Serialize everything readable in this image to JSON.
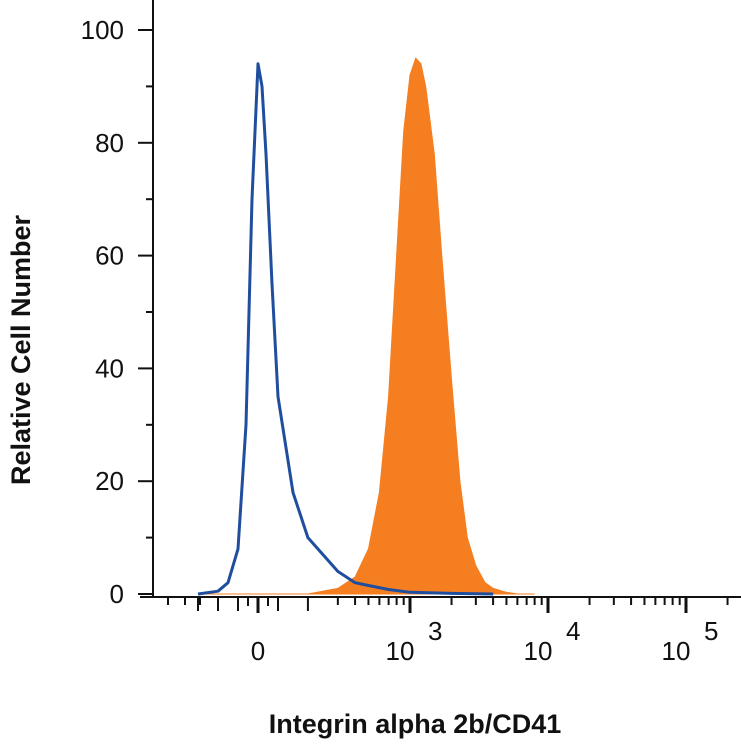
{
  "chart_data": {
    "type": "area",
    "title": "",
    "xlabel": "Integrin alpha 2b/CD41",
    "ylabel": "Relative Cell Number",
    "x_scale": "biexponential",
    "ylim": [
      0,
      100
    ],
    "grid": false,
    "legend": "none",
    "y_ticks": [
      {
        "value": 0,
        "label": "0"
      },
      {
        "value": 20,
        "label": "20"
      },
      {
        "value": 40,
        "label": "40"
      },
      {
        "value": 60,
        "label": "60"
      },
      {
        "value": 80,
        "label": "80"
      },
      {
        "value": 100,
        "label": "100"
      }
    ],
    "x_ticks": [
      {
        "value": 0,
        "label": "0",
        "exp": ""
      },
      {
        "value": 1000,
        "label": "10",
        "exp": "3"
      },
      {
        "value": 10000,
        "label": "10",
        "exp": "4"
      },
      {
        "value": 100000,
        "label": "10",
        "exp": "5"
      }
    ],
    "series": [
      {
        "style": "outline",
        "color": "#1f4e9e",
        "x": [
          -300,
          -200,
          -150,
          -100,
          -60,
          -30,
          0,
          20,
          40,
          70,
          100,
          150,
          200,
          300,
          400,
          500,
          700,
          1000,
          2000,
          4000
        ],
        "y": [
          0,
          0.5,
          2,
          8,
          30,
          70,
          94,
          90,
          78,
          55,
          35,
          18,
          10,
          4,
          2,
          1.5,
          0.8,
          0.3,
          0.1,
          0
        ]
      },
      {
        "style": "filled",
        "color": "#f57e20",
        "x": [
          -300,
          200,
          300,
          400,
          500,
          600,
          700,
          800,
          900,
          1000,
          1100,
          1200,
          1300,
          1500,
          1700,
          2000,
          2300,
          2600,
          3000,
          3500,
          4000,
          5000,
          6000,
          8000
        ],
        "y": [
          0,
          0,
          1,
          3,
          8,
          18,
          35,
          60,
          82,
          92,
          95,
          94,
          90,
          78,
          60,
          38,
          20,
          10,
          5,
          2,
          1,
          0.3,
          0,
          0
        ]
      }
    ]
  }
}
